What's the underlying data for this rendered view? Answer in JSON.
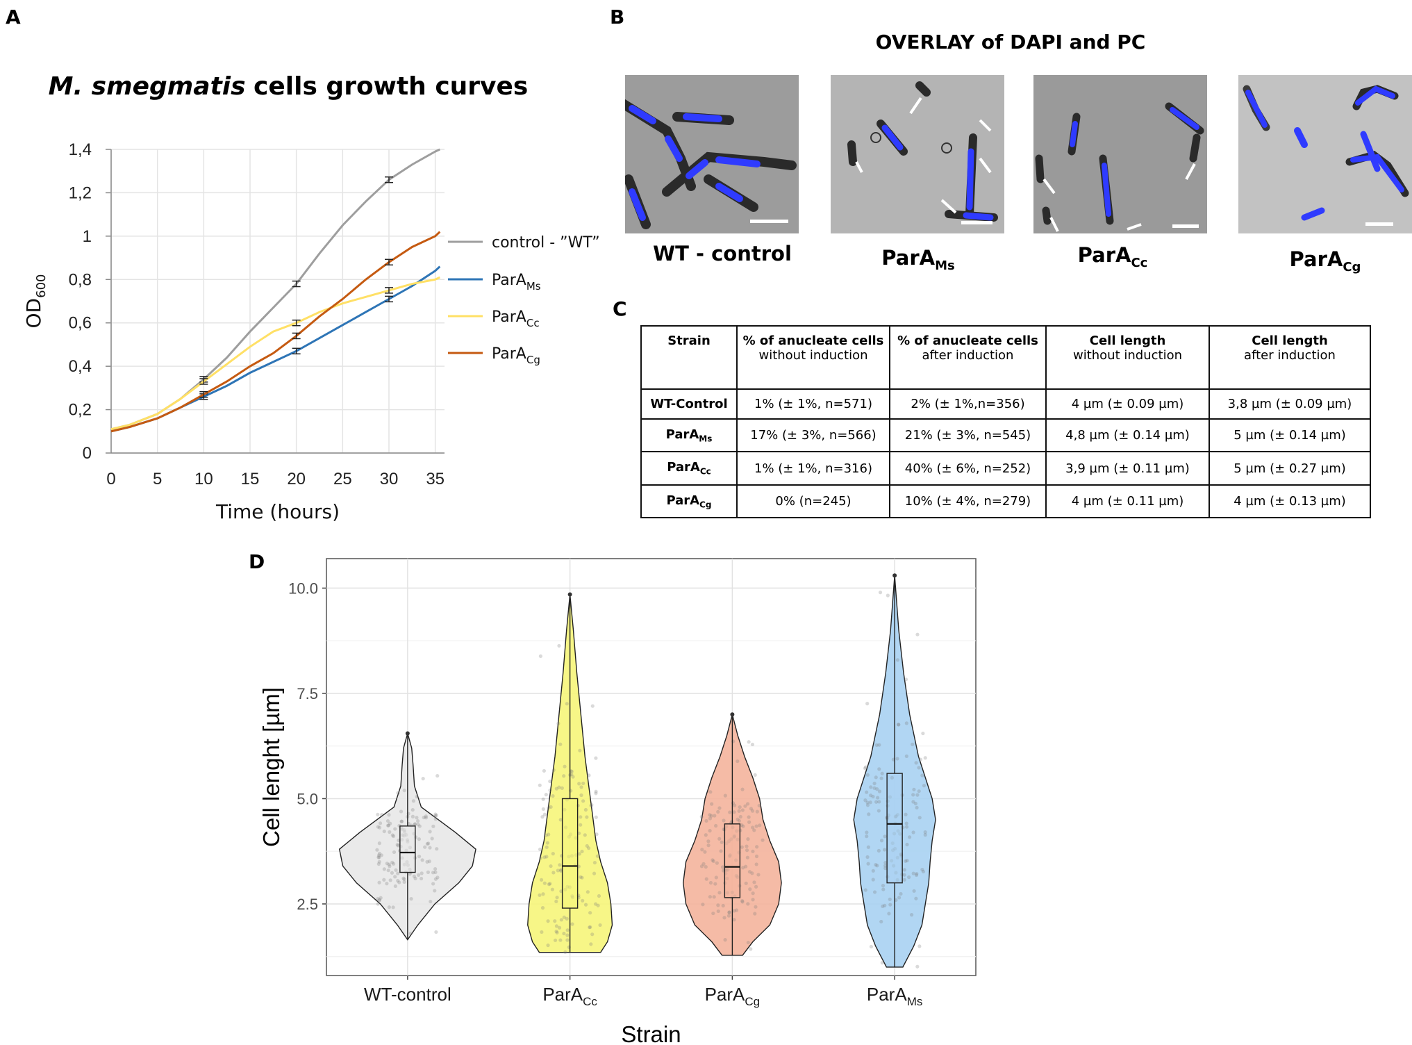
{
  "panel_labels": {
    "a": "A",
    "b": "B",
    "c": "C",
    "d": "D"
  },
  "chart_data": [
    {
      "type": "line",
      "title_italic": "M. smegmatis",
      "title_rest": "cells growth curves",
      "xlabel": "Time (hours)",
      "ylabel": "OD",
      "ylabel_sub": "600",
      "xlim": [
        0,
        36
      ],
      "ylim": [
        0,
        1.4
      ],
      "xticks": [
        "0",
        "5",
        "10",
        "15",
        "20",
        "25",
        "30",
        "35"
      ],
      "yticks": [
        "0",
        "0,2",
        "0,4",
        "0,6",
        "0,8",
        "1",
        "1,2",
        "1,4"
      ],
      "legend_position": "right",
      "series": [
        {
          "name": "control - ”WT”",
          "name_sub": "",
          "color": "#9e9e9e",
          "x": [
            0,
            2,
            5,
            7.5,
            10,
            12.5,
            15,
            17.5,
            20,
            22.5,
            25,
            27.5,
            30,
            32.5,
            35,
            35.5
          ],
          "y": [
            0.11,
            0.13,
            0.18,
            0.25,
            0.34,
            0.44,
            0.56,
            0.67,
            0.78,
            0.92,
            1.05,
            1.16,
            1.26,
            1.33,
            1.39,
            1.4
          ],
          "error_x": [
            10,
            20,
            30
          ],
          "error_y": [
            0.34,
            0.78,
            1.26
          ]
        },
        {
          "name": "ParA",
          "name_sub": "Ms",
          "color": "#2e75b6",
          "x": [
            0,
            2,
            5,
            7.5,
            10,
            12.5,
            15,
            17.5,
            20,
            22.5,
            25,
            27.5,
            30,
            32.5,
            35,
            35.5
          ],
          "y": [
            0.1,
            0.12,
            0.16,
            0.21,
            0.26,
            0.31,
            0.37,
            0.42,
            0.47,
            0.53,
            0.59,
            0.65,
            0.71,
            0.77,
            0.84,
            0.86
          ],
          "error_x": [
            10,
            20,
            30
          ],
          "error_y": [
            0.26,
            0.47,
            0.71
          ]
        },
        {
          "name": "ParA",
          "name_sub": "Cc",
          "color": "#ffe066",
          "x": [
            0,
            2,
            5,
            7.5,
            10,
            12.5,
            15,
            17.5,
            20,
            22.5,
            25,
            27.5,
            30,
            32.5,
            35,
            35.5
          ],
          "y": [
            0.11,
            0.13,
            0.18,
            0.25,
            0.33,
            0.41,
            0.49,
            0.56,
            0.6,
            0.65,
            0.69,
            0.72,
            0.75,
            0.78,
            0.8,
            0.81
          ],
          "error_x": [
            10,
            20,
            30
          ],
          "error_y": [
            0.33,
            0.6,
            0.75
          ]
        },
        {
          "name": "ParA",
          "name_sub": "Cg",
          "color": "#c55a11",
          "x": [
            0,
            2,
            5,
            7.5,
            10,
            12.5,
            15,
            17.5,
            20,
            22.5,
            25,
            27.5,
            30,
            32.5,
            35,
            35.5
          ],
          "y": [
            0.1,
            0.12,
            0.16,
            0.21,
            0.27,
            0.33,
            0.4,
            0.46,
            0.54,
            0.63,
            0.71,
            0.8,
            0.88,
            0.95,
            1.0,
            1.02
          ],
          "error_x": [
            10,
            20,
            30
          ],
          "error_y": [
            0.27,
            0.54,
            0.88
          ]
        }
      ]
    },
    {
      "type": "violin",
      "xlabel": "Strain",
      "ylabel": "Cell lenght [µm]",
      "ylim": [
        0.8,
        10.7
      ],
      "yticks": [
        "2.5",
        "5.0",
        "7.5",
        "10.0"
      ],
      "ytick_values": [
        2.5,
        5.0,
        7.5,
        10.0
      ],
      "grid": true,
      "groups": [
        {
          "name": "WT-control",
          "name_sub": "",
          "fill": "#e8e8e8",
          "min": 1.65,
          "q1": 3.25,
          "median": 3.72,
          "q3": 4.35,
          "max": 6.55,
          "density_y": [
            1.65,
            2.0,
            2.5,
            3.0,
            3.4,
            3.8,
            4.2,
            4.8,
            5.3,
            5.8,
            6.2,
            6.55
          ],
          "density_w": [
            0.0,
            0.15,
            0.4,
            0.75,
            0.95,
            1.0,
            0.7,
            0.2,
            0.1,
            0.08,
            0.06,
            0.0
          ]
        },
        {
          "name": "ParA",
          "name_sub": "Cc",
          "fill": "#f6f57a",
          "min": 1.35,
          "q1": 2.4,
          "median": 3.4,
          "q3": 5.0,
          "max": 9.85,
          "density_y": [
            1.35,
            1.6,
            2.0,
            2.5,
            3.0,
            3.5,
            4.0,
            5.0,
            6.0,
            7.0,
            8.0,
            9.0,
            9.85
          ],
          "density_w": [
            0.45,
            0.55,
            0.62,
            0.6,
            0.55,
            0.45,
            0.38,
            0.3,
            0.22,
            0.16,
            0.1,
            0.05,
            0.0
          ]
        },
        {
          "name": "ParA",
          "name_sub": "Cg",
          "fill": "#f4b49c",
          "min": 1.28,
          "q1": 2.65,
          "median": 3.38,
          "q3": 4.4,
          "max": 7.0,
          "density_y": [
            1.28,
            1.6,
            2.0,
            2.5,
            3.0,
            3.5,
            4.0,
            4.5,
            5.0,
            5.5,
            6.0,
            6.5,
            7.0
          ],
          "density_w": [
            0.15,
            0.3,
            0.55,
            0.68,
            0.72,
            0.68,
            0.55,
            0.45,
            0.4,
            0.3,
            0.18,
            0.08,
            0.0
          ]
        },
        {
          "name": "ParA",
          "name_sub": "Ms",
          "fill": "#a9d2f2",
          "min": 1.0,
          "q1": 3.0,
          "median": 4.4,
          "q3": 5.6,
          "max": 10.3,
          "density_y": [
            1.0,
            1.5,
            2.0,
            3.0,
            3.5,
            4.0,
            4.5,
            5.0,
            5.5,
            6.0,
            7.0,
            8.0,
            9.0,
            10.3
          ],
          "density_w": [
            0.12,
            0.28,
            0.4,
            0.5,
            0.52,
            0.55,
            0.6,
            0.55,
            0.45,
            0.35,
            0.22,
            0.13,
            0.06,
            0.0
          ]
        }
      ]
    }
  ],
  "panel_b": {
    "title": "OVERLAY of DAPI and PC",
    "images": [
      {
        "label": "WT - control",
        "label_sub": ""
      },
      {
        "label": "ParA",
        "label_sub": "Ms"
      },
      {
        "label": "ParA",
        "label_sub": "Cc"
      },
      {
        "label": "ParA",
        "label_sub": "Cg"
      }
    ]
  },
  "panel_c": {
    "headers": [
      {
        "main": "Strain",
        "sub": ""
      },
      {
        "main": "% of anucleate cells",
        "sub": "without  induction"
      },
      {
        "main": "% of anucleate cells",
        "sub": "after induction"
      },
      {
        "main": "Cell length",
        "sub": "without  induction"
      },
      {
        "main": "Cell length",
        "sub": "after induction"
      }
    ],
    "rows": [
      {
        "strain": "WT-Control",
        "strain_sub": "",
        "c1": "1% (± 1%, n=571)",
        "c2": "2% (± 1%,n=356)",
        "c3": "4 µm (± 0.09 µm)",
        "c4": "3,8 µm (± 0.09 µm)"
      },
      {
        "strain": "ParA",
        "strain_sub": "Ms",
        "c1": "17% (± 3%, n=566)",
        "c2": "21% (± 3%, n=545)",
        "c3": "4,8 µm (± 0.14 µm)",
        "c4": "5 µm (± 0.14 µm)"
      },
      {
        "strain": "ParA",
        "strain_sub": "Cc",
        "c1": "1% (± 1%, n=316)",
        "c2": "40% (± 6%, n=252)",
        "c3": "3,9 µm (± 0.11 µm)",
        "c4": "5 µm (± 0.27 µm)"
      },
      {
        "strain": "ParA",
        "strain_sub": "Cg",
        "c1": "0% (n=245)",
        "c2": "10% (± 4%, n=279)",
        "c3": "4 µm (± 0.11 µm)",
        "c4": "4 µm (± 0.13 µm)"
      }
    ]
  }
}
